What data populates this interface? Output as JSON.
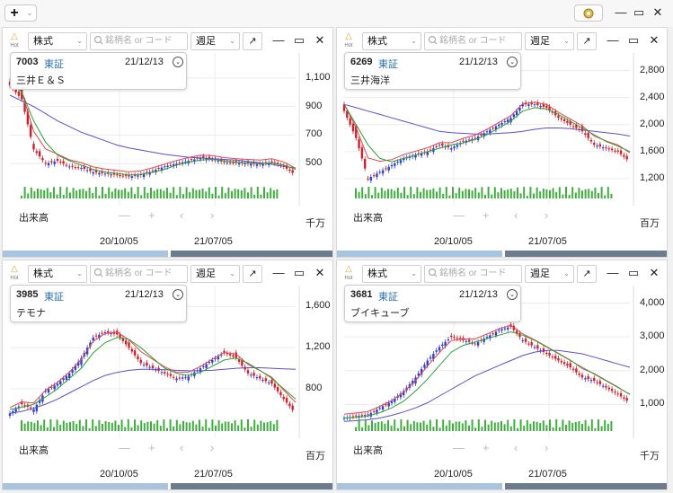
{
  "toolbar": {
    "add_label": "+",
    "add_caret": "⌄",
    "gear_icon": "gear-icon",
    "minimize": "—",
    "maximize": "▭",
    "close": "✕"
  },
  "panel_controls": {
    "hot_label": "Hot",
    "type_select": "株式",
    "search_placeholder": "銘柄名 or コード",
    "period_select": "週足",
    "expand": "↗",
    "minimize": "—",
    "maximize": "▭",
    "close": "✕",
    "volume_title": "出来高",
    "x_labels": [
      "20/10/05",
      "21/07/05"
    ],
    "nav": [
      "—",
      "+",
      "‹",
      "›"
    ]
  },
  "panels": [
    {
      "code": "7003",
      "market": "東証",
      "date": "21/12/13",
      "name": "三井Ｅ＆Ｓ",
      "y_labels": [
        "1,100",
        "900",
        "700",
        "500"
      ],
      "volume_unit": "千万",
      "chart_data": {
        "type": "candlestick",
        "y_range": [
          300,
          1200
        ],
        "close": [
          1050,
          950,
          600,
          500,
          520,
          480,
          470,
          440,
          430,
          420,
          410,
          420,
          450,
          480,
          500,
          520,
          540,
          530,
          510,
          505,
          500,
          495,
          510,
          480,
          420
        ],
        "ma_short": [
          1100,
          1000,
          800,
          650,
          560,
          520,
          490,
          460,
          440,
          430,
          420,
          425,
          440,
          460,
          490,
          510,
          525,
          530,
          520,
          510,
          505,
          500,
          505,
          490,
          460
        ],
        "ma_long": [
          980,
          940,
          900,
          850,
          800,
          760,
          720,
          690,
          660,
          630,
          610,
          595,
          580,
          565,
          555,
          545,
          540,
          535,
          530,
          525,
          515,
          505,
          495,
          480,
          470
        ]
      }
    },
    {
      "code": "6269",
      "market": "東証",
      "date": "21/12/13",
      "name": "三井海洋",
      "y_labels": [
        "2,800",
        "2,400",
        "2,000",
        "1,600",
        "1,200"
      ],
      "volume_unit": "百万",
      "chart_data": {
        "type": "candlestick",
        "y_range": [
          1000,
          2900
        ],
        "close": [
          2200,
          1800,
          1200,
          1300,
          1400,
          1500,
          1550,
          1600,
          1700,
          1650,
          1750,
          1800,
          1900,
          2000,
          2100,
          2300,
          2300,
          2250,
          2100,
          2000,
          1900,
          1700,
          1650,
          1600,
          1450
        ],
        "ma_short": [
          2300,
          2000,
          1700,
          1500,
          1450,
          1500,
          1550,
          1600,
          1650,
          1700,
          1730,
          1780,
          1850,
          1950,
          2050,
          2200,
          2250,
          2230,
          2150,
          2050,
          1950,
          1850,
          1750,
          1680,
          1600
        ],
        "ma_long": [
          2300,
          2250,
          2200,
          2150,
          2100,
          2050,
          2000,
          1950,
          1900,
          1880,
          1870,
          1860,
          1860,
          1870,
          1880,
          1900,
          1930,
          1950,
          1950,
          1940,
          1920,
          1900,
          1880,
          1860,
          1830
        ]
      }
    },
    {
      "code": "3985",
      "market": "東証",
      "date": "21/12/13",
      "name": "テモナ",
      "y_labels": [
        "1,600",
        "1,200",
        "800"
      ],
      "volume_unit": "百万",
      "chart_data": {
        "type": "candlestick",
        "y_range": [
          450,
          1700
        ],
        "close": [
          560,
          650,
          600,
          780,
          850,
          950,
          1100,
          1300,
          1350,
          1330,
          1200,
          1050,
          1000,
          950,
          900,
          920,
          1000,
          1080,
          1150,
          1100,
          950,
          900,
          850,
          700,
          560
        ],
        "ma_short": [
          600,
          620,
          650,
          720,
          800,
          900,
          1000,
          1150,
          1250,
          1300,
          1280,
          1200,
          1100,
          1000,
          950,
          930,
          960,
          1020,
          1080,
          1100,
          1050,
          980,
          900,
          800,
          700
        ],
        "ma_long": [
          560,
          580,
          610,
          650,
          700,
          760,
          820,
          880,
          930,
          960,
          980,
          990,
          990,
          985,
          980,
          975,
          975,
          980,
          990,
          1000,
          1005,
          1005,
          1000,
          995,
          990
        ]
      }
    },
    {
      "code": "3681",
      "market": "東証",
      "date": "21/12/13",
      "name": "ブイキューブ",
      "y_labels": [
        "4,000",
        "3,000",
        "2,000",
        "1,000"
      ],
      "volume_unit": "千万",
      "chart_data": {
        "type": "candlestick",
        "y_range": [
          400,
          4200
        ],
        "close": [
          600,
          650,
          700,
          900,
          1100,
          1400,
          1800,
          2300,
          2700,
          3000,
          2900,
          2800,
          3000,
          3200,
          3300,
          2900,
          2700,
          2500,
          2300,
          2100,
          1800,
          1700,
          1500,
          1300,
          1050
        ],
        "ma_short": [
          600,
          620,
          660,
          760,
          900,
          1100,
          1400,
          1750,
          2150,
          2550,
          2750,
          2850,
          2950,
          3050,
          3150,
          3050,
          2900,
          2700,
          2500,
          2300,
          2100,
          1900,
          1700,
          1500,
          1300
        ],
        "ma_long": [
          500,
          520,
          550,
          600,
          680,
          780,
          900,
          1050,
          1250,
          1450,
          1650,
          1850,
          2000,
          2150,
          2300,
          2450,
          2550,
          2600,
          2600,
          2550,
          2500,
          2400,
          2300,
          2200,
          2100
        ]
      }
    }
  ],
  "colors": {
    "up": "#2f3fd0",
    "down": "#d21f2a",
    "ma_short": "#2ea033",
    "ma_mid": "#e0474c",
    "ma_long": "#5a4fc8",
    "volume": "#3fae3f",
    "overview_left": "#a7c4e0",
    "overview_right": "#6d7c8c"
  }
}
